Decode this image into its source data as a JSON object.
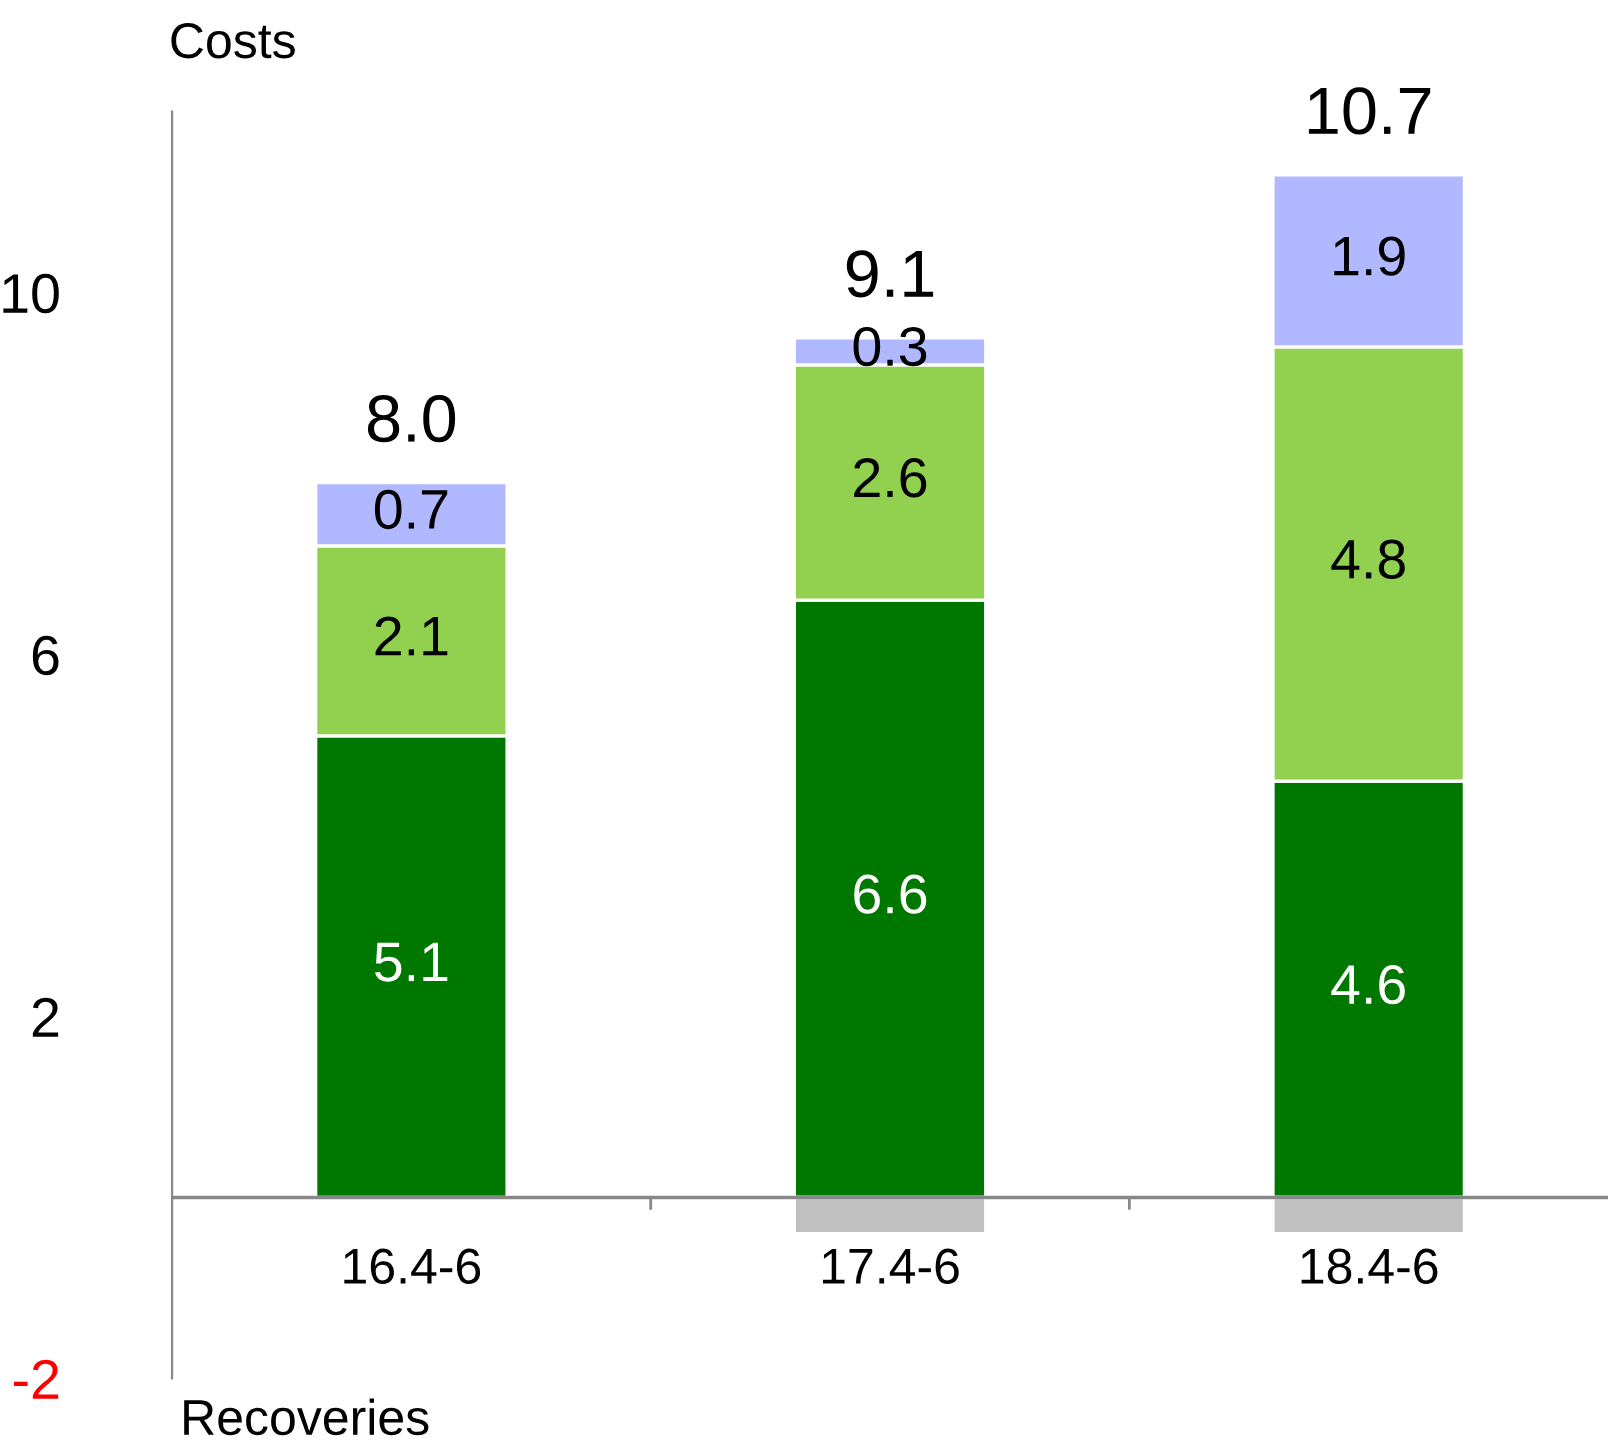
{
  "chart_data": {
    "type": "bar",
    "stacked": true,
    "categories": [
      "16.4-6",
      "17.4-6",
      "18.4-6"
    ],
    "series": [
      {
        "color": "#007800",
        "values": [
          5.1,
          6.6,
          4.6
        ],
        "value_labels": [
          "5.1",
          "6.6",
          "4.6"
        ]
      },
      {
        "color": "#92d050",
        "values": [
          2.1,
          2.6,
          4.8
        ],
        "value_labels": [
          "2.1",
          "2.6",
          "4.8"
        ]
      },
      {
        "color": "#b0b8ff",
        "values": [
          0.7,
          0.3,
          1.9
        ],
        "value_labels": [
          "0.7",
          "0.3",
          "1.9"
        ]
      },
      {
        "color": "#c0c0c0",
        "values": [
          null,
          -0.4,
          -0.4
        ]
      }
    ],
    "totals": [
      "8.0",
      "9.1",
      "10.7"
    ],
    "ylim": [
      -2,
      12
    ],
    "yticks": [
      -2,
      2,
      6,
      10
    ],
    "grid": false,
    "legend": false,
    "annotations": [
      "Costs",
      "Recoveries"
    ]
  }
}
